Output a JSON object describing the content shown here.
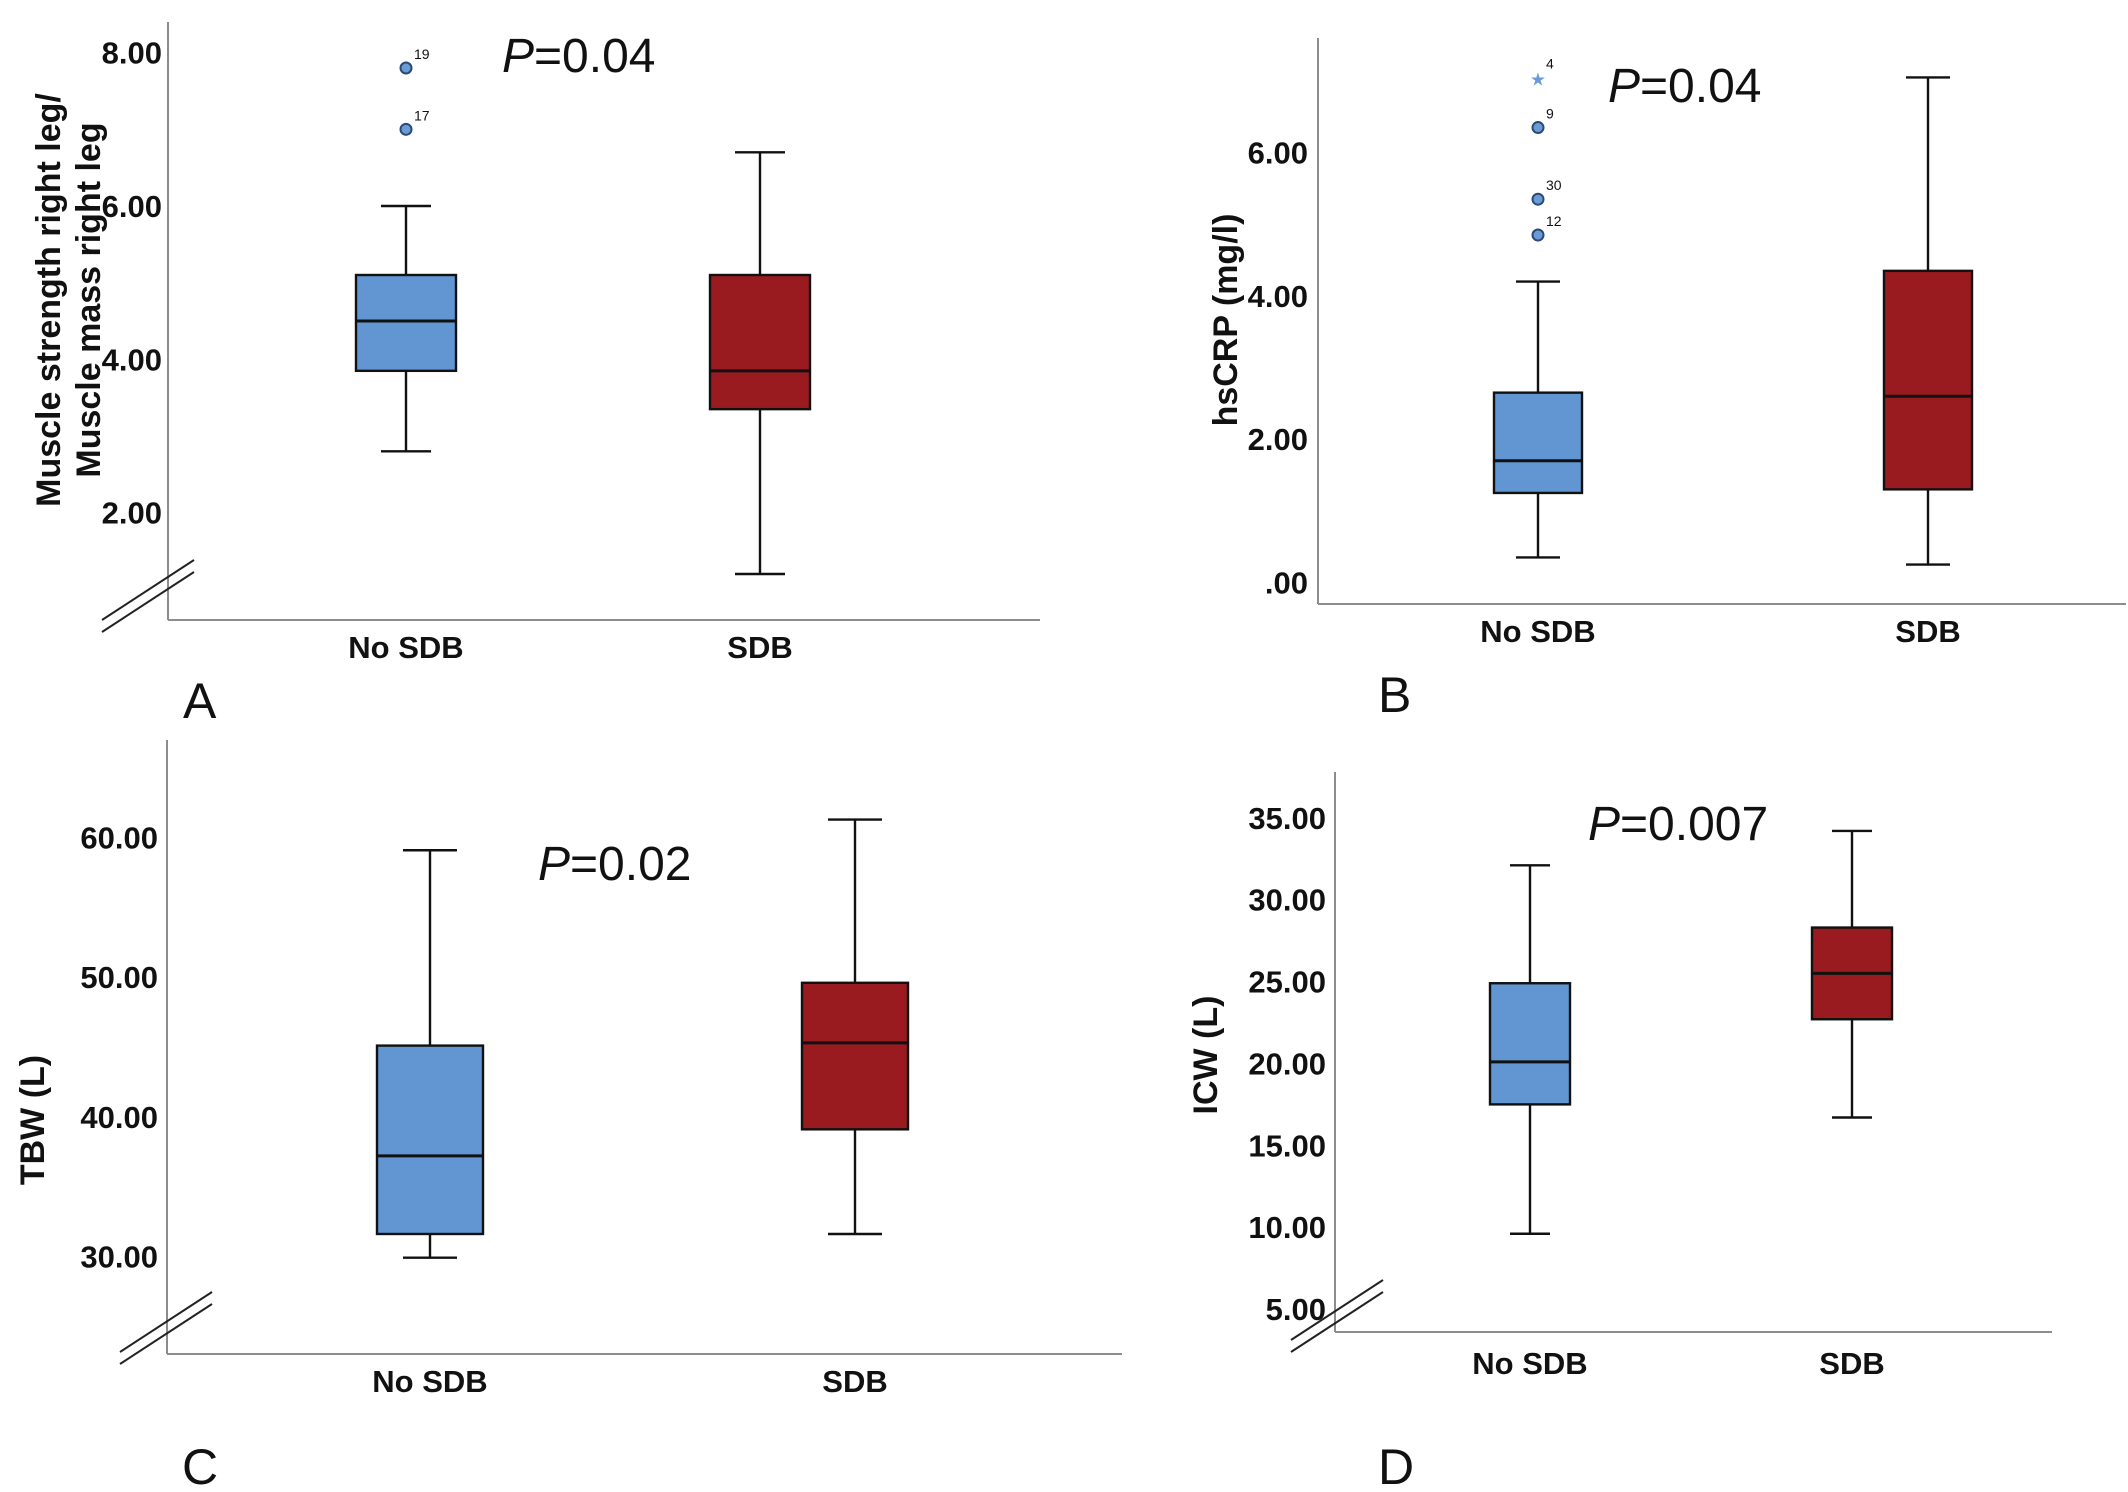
{
  "colors": {
    "no_sdb": "#6196d2",
    "sdb": "#991b20",
    "outlier_fill": "#6b9bd6",
    "star": "#6b9bd6"
  },
  "chart_data": [
    {
      "id": "A",
      "type": "box",
      "panel_letter": "A",
      "ylabel_lines": [
        "Muscle strength right leg/",
        "Muscle mass right leg"
      ],
      "p_letter": "P",
      "p_text": "=0.04",
      "ylim": [
        0.6,
        8.4
      ],
      "yticks": [
        2,
        4,
        6,
        8
      ],
      "ytick_labels": [
        "2.00",
        "4.00",
        "6.00",
        "8.00"
      ],
      "axis_break": true,
      "categories": [
        "No SDB",
        "SDB"
      ],
      "boxes": [
        {
          "name": "No SDB",
          "whisker_low": 2.8,
          "q1": 3.85,
          "median": 4.5,
          "q3": 5.1,
          "whisker_high": 6.0,
          "outliers": [
            {
              "value": 7.8,
              "label": "19",
              "marker": "circle"
            },
            {
              "value": 7.0,
              "label": "17",
              "marker": "circle"
            }
          ]
        },
        {
          "name": "SDB",
          "whisker_low": 1.2,
          "q1": 3.35,
          "median": 3.85,
          "q3": 5.1,
          "whisker_high": 6.7,
          "outliers": []
        }
      ]
    },
    {
      "id": "B",
      "type": "box",
      "panel_letter": "B",
      "ylabel_lines": [
        "hsCRP (mg/l)"
      ],
      "p_letter": "P",
      "p_text": "=0.04",
      "ylim": [
        -0.3,
        7.6
      ],
      "yticks": [
        0,
        2,
        4,
        6
      ],
      "ytick_labels": [
        ".00",
        "2.00",
        "4.00",
        "6.00"
      ],
      "axis_break": false,
      "categories": [
        "No SDB",
        "SDB"
      ],
      "boxes": [
        {
          "name": "No SDB",
          "whisker_low": 0.35,
          "q1": 1.25,
          "median": 1.7,
          "q3": 2.65,
          "whisker_high": 4.2,
          "outliers": [
            {
              "value": 7.05,
              "label": "4",
              "marker": "star"
            },
            {
              "value": 6.35,
              "label": "9",
              "marker": "circle"
            },
            {
              "value": 5.35,
              "label": "30",
              "marker": "circle"
            },
            {
              "value": 4.85,
              "label": "12",
              "marker": "circle"
            }
          ]
        },
        {
          "name": "SDB",
          "whisker_low": 0.25,
          "q1": 1.3,
          "median": 2.6,
          "q3": 4.35,
          "whisker_high": 7.05,
          "outliers": []
        }
      ]
    },
    {
      "id": "C",
      "type": "box",
      "panel_letter": "C",
      "ylabel_lines": [
        "TBW (L)"
      ],
      "p_letter": "P",
      "p_text": "=0.02",
      "ylim": [
        23,
        67
      ],
      "yticks": [
        30,
        40,
        50,
        60
      ],
      "ytick_labels": [
        "30.00",
        "40.00",
        "50.00",
        "60.00"
      ],
      "axis_break": true,
      "categories": [
        "No SDB",
        "SDB"
      ],
      "boxes": [
        {
          "name": "No SDB",
          "whisker_low": 29.9,
          "q1": 31.6,
          "median": 37.2,
          "q3": 45.1,
          "whisker_high": 59.1,
          "outliers": []
        },
        {
          "name": "SDB",
          "whisker_low": 31.6,
          "q1": 39.1,
          "median": 45.3,
          "q3": 49.6,
          "whisker_high": 61.3,
          "outliers": []
        }
      ]
    },
    {
      "id": "D",
      "type": "box",
      "panel_letter": "D",
      "ylabel_lines": [
        "ICW (L)"
      ],
      "p_letter": "P",
      "p_text": "=0.007",
      "ylim": [
        3.6,
        37.8
      ],
      "yticks": [
        5,
        10,
        15,
        20,
        25,
        30,
        35
      ],
      "ytick_labels": [
        "5.00",
        "10.00",
        "15.00",
        "20.00",
        "25.00",
        "30.00",
        "35.00"
      ],
      "axis_break": true,
      "categories": [
        "No SDB",
        "SDB"
      ],
      "boxes": [
        {
          "name": "No SDB",
          "whisker_low": 9.6,
          "q1": 17.5,
          "median": 20.1,
          "q3": 24.9,
          "whisker_high": 32.1,
          "outliers": []
        },
        {
          "name": "SDB",
          "whisker_low": 16.7,
          "q1": 22.7,
          "median": 25.5,
          "q3": 28.3,
          "whisker_high": 34.2,
          "outliers": []
        }
      ]
    }
  ]
}
